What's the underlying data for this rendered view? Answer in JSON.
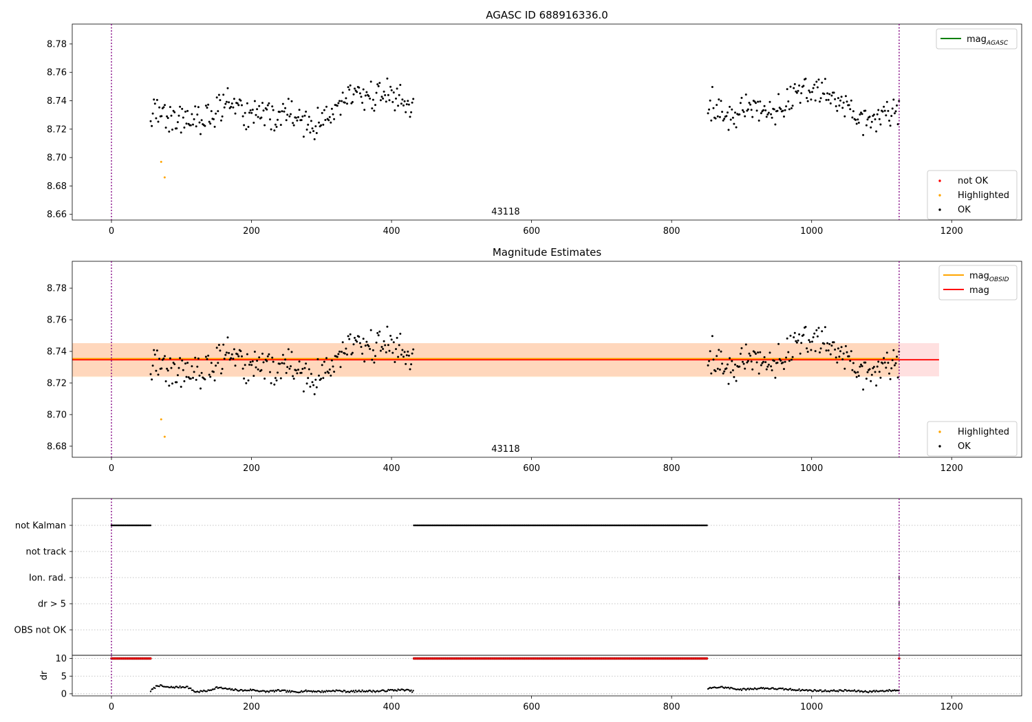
{
  "chart_data": [
    {
      "type": "scatter",
      "title": "AGASC ID 688916336.0",
      "xlabel": "",
      "ylabel": "",
      "xlim": [
        -56,
        1300
      ],
      "ylim": [
        8.656,
        8.794
      ],
      "x_ticks": [
        0,
        200,
        400,
        600,
        800,
        1000,
        1200
      ],
      "y_ticks": [
        8.66,
        8.68,
        8.7,
        8.72,
        8.74,
        8.76,
        8.78
      ],
      "grid": false,
      "vlines": [
        0,
        1125
      ],
      "annotation": "43118",
      "legends": [
        {
          "placement": "top-right",
          "entries": [
            {
              "label": "mag",
              "subscript": "AGASC",
              "color": "#008000",
              "marker": "line"
            }
          ]
        },
        {
          "placement": "bottom-right",
          "entries": [
            {
              "label": "not OK",
              "color": "#ff0000",
              "marker": "dot"
            },
            {
              "label": "Highlighted",
              "color": "#ffa500",
              "marker": "dot"
            },
            {
              "label": "OK",
              "color": "#000000",
              "marker": "dot"
            }
          ]
        }
      ],
      "series": [
        {
          "name": "OK",
          "color": "#000000",
          "segments": [
            {
              "x": [
                56,
                75,
                95,
                110,
                130,
                150,
                170,
                190,
                210,
                230,
                250,
                270,
                290,
                310,
                330,
                350,
                370,
                390,
                410,
                432
              ],
              "y": [
                8.732,
                8.73,
                8.726,
                8.728,
                8.723,
                8.734,
                8.738,
                8.73,
                8.733,
                8.728,
                8.731,
                8.727,
                8.722,
                8.727,
                8.74,
                8.744,
                8.743,
                8.744,
                8.742,
                8.734
              ]
            },
            {
              "x": [
                852,
                870,
                890,
                910,
                930,
                950,
                970,
                990,
                1010,
                1030,
                1050,
                1070,
                1090,
                1110,
                1125
              ],
              "y": [
                8.734,
                8.734,
                8.728,
                8.738,
                8.732,
                8.734,
                8.74,
                8.748,
                8.747,
                8.741,
                8.734,
                8.728,
                8.728,
                8.732,
                8.736
              ]
            }
          ]
        },
        {
          "name": "Highlighted",
          "color": "#ffa500",
          "x": [
            71,
            76
          ],
          "y": [
            8.697,
            8.686
          ]
        }
      ]
    },
    {
      "type": "scatter",
      "title": "Magnitude Estimates",
      "xlabel": "",
      "ylabel": "",
      "xlim": [
        -56,
        1300
      ],
      "ylim": [
        8.673,
        8.797
      ],
      "x_ticks": [
        0,
        200,
        400,
        600,
        800,
        1000,
        1200
      ],
      "y_ticks": [
        8.68,
        8.7,
        8.72,
        8.74,
        8.76,
        8.78
      ],
      "grid": false,
      "vlines": [
        0,
        1125
      ],
      "annotation": "43118",
      "mag_line": {
        "y": 8.7347,
        "band": [
          8.7242,
          8.7452
        ],
        "x_range": [
          -56,
          1182
        ],
        "color": "#ff0000"
      },
      "mag_obsid_line": {
        "y": 8.7349,
        "band": [
          8.7238,
          8.7452
        ],
        "x_range": [
          -56,
          1125
        ],
        "color": "#ffa500"
      },
      "legends": [
        {
          "placement": "top-right",
          "entries": [
            {
              "label": "mag",
              "subscript": "OBSID",
              "color": "#ffa500",
              "marker": "line"
            },
            {
              "label": "mag",
              "subscript": "",
              "color": "#ff0000",
              "marker": "line"
            }
          ]
        },
        {
          "placement": "bottom-right",
          "entries": [
            {
              "label": "Highlighted",
              "color": "#ffa500",
              "marker": "dot"
            },
            {
              "label": "OK",
              "color": "#000000",
              "marker": "dot"
            }
          ]
        }
      ],
      "series": [
        {
          "name": "OK",
          "color": "#000000",
          "same_as_panel": 0
        },
        {
          "name": "Highlighted",
          "color": "#ffa500",
          "x": [
            71,
            76
          ],
          "y": [
            8.697,
            8.686
          ]
        }
      ]
    },
    {
      "type": "scatter",
      "title": "",
      "xlim": [
        -56,
        1300
      ],
      "flag_labels": [
        "not Kalman",
        "not track",
        "Ion. rad.",
        "dr > 5",
        "OBS not OK"
      ],
      "grid": "dotted-horizontal",
      "vlines": [
        0,
        1125
      ],
      "flags": {
        "not Kalman": [
          [
            0,
            56
          ],
          [
            432,
            852
          ]
        ],
        "not track": [],
        "Ion. rad.": [
          [
            1125,
            1125
          ]
        ],
        "dr > 5": [
          [
            1125,
            1125
          ]
        ],
        "OBS not OK": []
      }
    },
    {
      "type": "scatter",
      "title": "",
      "xlabel": "",
      "ylabel": "dr",
      "xlim": [
        -56,
        1300
      ],
      "ylim": [
        -0.6,
        10.9
      ],
      "x_ticks": [
        0,
        200,
        400,
        600,
        800,
        1000,
        1200
      ],
      "y_ticks": [
        0,
        5,
        10
      ],
      "grid": "dotted-horizontal",
      "vlines": [
        0,
        1125
      ],
      "series": [
        {
          "name": "dr capped",
          "color": "#ff0000",
          "y": 10,
          "ranges": [
            [
              0,
              56
            ],
            [
              432,
              852
            ],
            [
              1125,
              1125
            ]
          ]
        },
        {
          "name": "dr",
          "color": "#000000",
          "x": [
            56,
            66,
            80,
            100,
            108,
            120,
            140,
            150,
            170,
            190,
            200,
            220,
            240,
            260,
            280,
            300,
            320,
            340,
            360,
            380,
            400,
            420,
            432,
            852,
            870,
            900,
            930,
            960,
            990,
            1020,
            1050,
            1080,
            1110,
            1125
          ],
          "y": [
            0.8,
            2.4,
            1.8,
            1.9,
            2.0,
            0.5,
            0.9,
            1.8,
            1.2,
            0.9,
            1.1,
            0.6,
            0.9,
            0.5,
            0.8,
            0.6,
            0.9,
            0.6,
            0.8,
            0.7,
            1.0,
            1.1,
            0.6,
            1.5,
            1.9,
            1.2,
            1.6,
            1.3,
            1.0,
            0.8,
            0.9,
            0.6,
            0.9,
            1.0
          ]
        }
      ]
    }
  ]
}
